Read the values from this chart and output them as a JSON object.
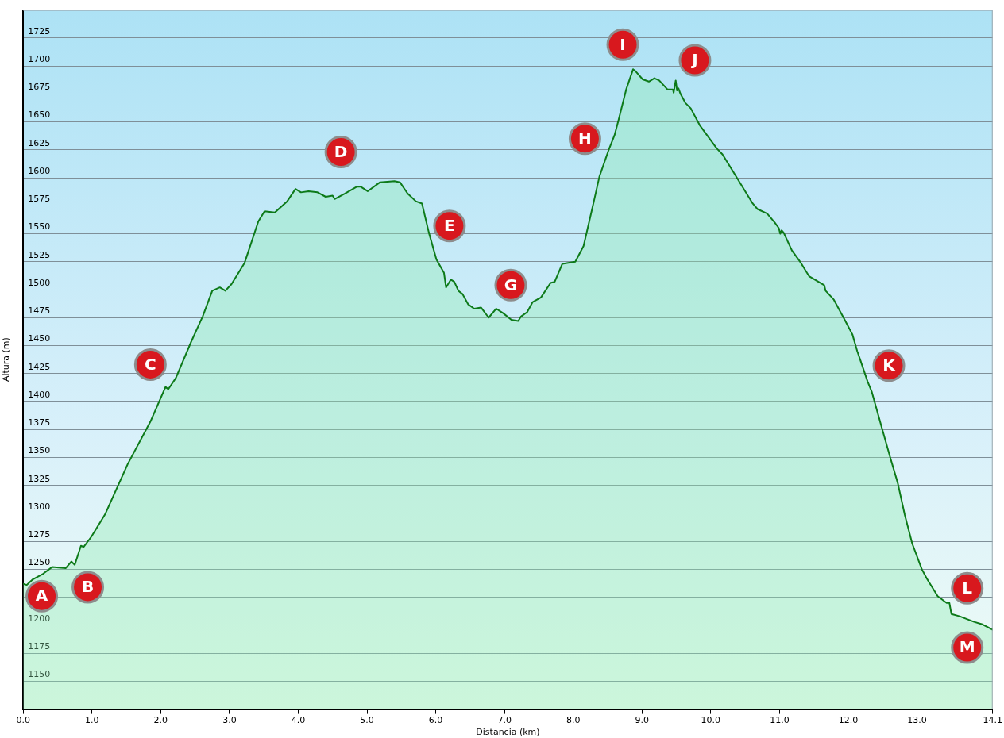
{
  "chart_data": {
    "type": "area",
    "xlabel": "Distancia (km)",
    "ylabel": "Altura (m)",
    "x": [
      0,
      0.05,
      0.14,
      0.29,
      0.42,
      0.62,
      0.7,
      0.75,
      0.84,
      0.88,
      0.99,
      1.19,
      1.52,
      1.85,
      2.07,
      2.11,
      2.22,
      2.44,
      2.61,
      2.75,
      2.86,
      2.94,
      3.03,
      3.22,
      3.42,
      3.51,
      3.66,
      3.84,
      3.96,
      4.04,
      4.15,
      4.28,
      4.4,
      4.5,
      4.53,
      4.68,
      4.85,
      4.91,
      5.01,
      5.19,
      5.4,
      5.48,
      5.59,
      5.71,
      5.8,
      5.9,
      6.01,
      6.12,
      6.15,
      6.22,
      6.27,
      6.33,
      6.39,
      6.47,
      6.56,
      6.66,
      6.77,
      6.88,
      6.98,
      7.1,
      7.2,
      7.24,
      7.33,
      7.41,
      7.53,
      7.67,
      7.73,
      7.84,
      8.03,
      8.15,
      8.3,
      8.38,
      8.51,
      8.6,
      8.66,
      8.77,
      8.87,
      8.91,
      9.01,
      9.1,
      9.18,
      9.25,
      9.37,
      9.45,
      9.46,
      9.49,
      9.51,
      9.53,
      9.56,
      9.63,
      9.71,
      9.84,
      10.09,
      10.17,
      10.32,
      10.61,
      10.68,
      10.82,
      10.93,
      10.99,
      11.01,
      11.03,
      11.06,
      11.18,
      11.31,
      11.43,
      11.65,
      11.67,
      11.79,
      11.94,
      12.06,
      12.13,
      12.17,
      12.28,
      12.34,
      12.49,
      12.61,
      12.72,
      12.82,
      12.93,
      13.07,
      13.14,
      13.3,
      13.43,
      13.47,
      13.5,
      13.62,
      13.83,
      13.94,
      14.1
    ],
    "values": [
      1237,
      1236,
      1241,
      1246,
      1252,
      1251,
      1257,
      1254,
      1271,
      1270,
      1279,
      1299,
      1344,
      1382,
      1413,
      1411,
      1421,
      1453,
      1476,
      1499,
      1502,
      1499,
      1505,
      1524,
      1561,
      1570,
      1569,
      1579,
      1590,
      1587,
      1588,
      1587,
      1583,
      1584,
      1581,
      1586,
      1592,
      1592,
      1588,
      1596,
      1597,
      1596,
      1586,
      1579,
      1577,
      1551,
      1527,
      1515,
      1502,
      1509,
      1507,
      1499,
      1496,
      1487,
      1483,
      1484,
      1475,
      1483,
      1479,
      1473,
      1472,
      1476,
      1480,
      1489,
      1493,
      1506,
      1507,
      1523,
      1525,
      1539,
      1579,
      1601,
      1624,
      1638,
      1652,
      1679,
      1697,
      1695,
      1688,
      1686,
      1689,
      1687,
      1679,
      1679,
      1676,
      1687,
      1678,
      1680,
      1675,
      1667,
      1662,
      1647,
      1626,
      1621,
      1606,
      1577,
      1572,
      1568,
      1560,
      1555,
      1550,
      1553,
      1551,
      1535,
      1524,
      1512,
      1504,
      1499,
      1491,
      1474,
      1460,
      1445,
      1438,
      1418,
      1409,
      1376,
      1350,
      1327,
      1299,
      1273,
      1250,
      1242,
      1226,
      1220,
      1220,
      1210,
      1208,
      1203,
      1201,
      1196
    ],
    "color": "#0d7a19",
    "xlim": [
      0,
      14.1
    ],
    "xticks": [
      {
        "value": 0,
        "label": "0.0"
      },
      {
        "value": 1,
        "label": "1.0"
      },
      {
        "value": 2,
        "label": "2.0"
      },
      {
        "value": 3,
        "label": "3.0"
      },
      {
        "value": 4,
        "label": "4.0"
      },
      {
        "value": 5,
        "label": "5.0"
      },
      {
        "value": 6,
        "label": "6.0"
      },
      {
        "value": 7,
        "label": "7.0"
      },
      {
        "value": 8,
        "label": "8.0"
      },
      {
        "value": 9,
        "label": "9.0"
      },
      {
        "value": 10,
        "label": "10.0"
      },
      {
        "value": 11,
        "label": "11.0"
      },
      {
        "value": 12,
        "label": "12.0"
      },
      {
        "value": 13,
        "label": "13.0"
      },
      14.1
    ],
    "ylim": [
      1125,
      1750
    ],
    "yticks": [
      1150,
      1175,
      1200,
      {
        "value": 1225,
        "label": null
      },
      1250,
      1275,
      1300,
      1325,
      1350,
      1375,
      1400,
      1425,
      1450,
      1475,
      1500,
      1525,
      1550,
      1575,
      1600,
      1625,
      1650,
      1675,
      1700,
      1725
    ],
    "grid": "y",
    "annotations": [
      {
        "text": "A",
        "x": 0.27,
        "y": 1226
      },
      {
        "text": "B",
        "x": 0.94,
        "y": 1234
      },
      {
        "text": "C",
        "x": 1.85,
        "y": 1433
      },
      {
        "text": "D",
        "x": 4.62,
        "y": 1623
      },
      {
        "text": "E",
        "x": 6.2,
        "y": 1557
      },
      {
        "text": "G",
        "x": 7.09,
        "y": 1504
      },
      {
        "text": "H",
        "x": 8.17,
        "y": 1635
      },
      {
        "text": "I",
        "x": 8.72,
        "y": 1719
      },
      {
        "text": "J",
        "x": 9.77,
        "y": 1705
      },
      {
        "text": "K",
        "x": 12.59,
        "y": 1432
      },
      {
        "text": "L",
        "x": 13.73,
        "y": 1233
      },
      {
        "text": "M",
        "x": 13.73,
        "y": 1180
      }
    ]
  }
}
